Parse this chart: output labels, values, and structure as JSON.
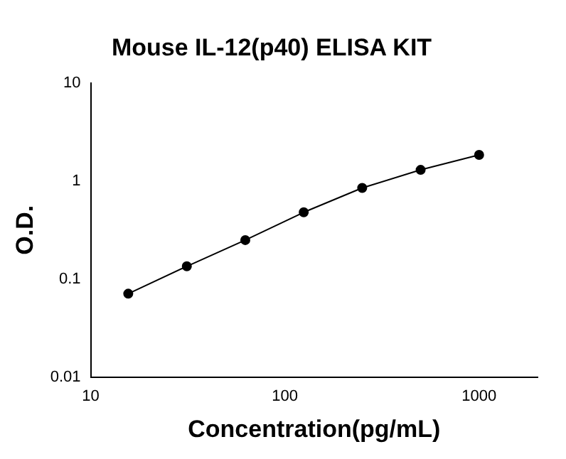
{
  "chart_data": {
    "type": "line",
    "title": "Mouse IL-12(p40) ELISA KIT",
    "xlabel": "Concentration(pg/mL)",
    "ylabel": "O.D.",
    "x": [
      15.6,
      31.25,
      62.5,
      125,
      250,
      500,
      1000
    ],
    "series": [
      {
        "color": "#000000",
        "values": [
          0.071,
          0.135,
          0.25,
          0.48,
          0.85,
          1.3,
          1.85
        ]
      }
    ],
    "xlim": [
      10,
      2000
    ],
    "xticks": [
      10,
      100,
      1000
    ],
    "ylim": [
      0.01,
      10
    ],
    "yticks": [
      0.01,
      0.1,
      1,
      10
    ],
    "log": "xy",
    "grid": false,
    "legend": false,
    "marker": "circle",
    "line_style": "solid"
  }
}
